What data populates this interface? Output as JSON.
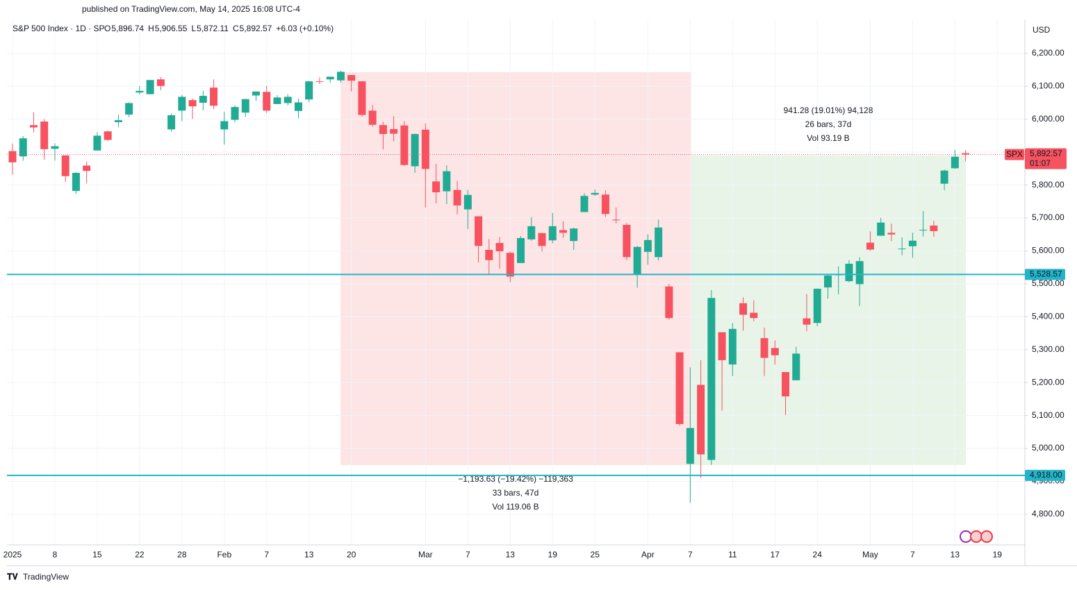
{
  "published": "published on TradingView.com, May 14, 2025 16:08 UTC-4",
  "brand": "TradingView",
  "chart_data": {
    "type": "candlestick",
    "title": "S&P 500 Index · 1D · SP",
    "ohlc": [
      {
        "key": "O",
        "value": "5,896.74"
      },
      {
        "key": "H",
        "value": "5,906.55"
      },
      {
        "key": "L",
        "value": "5,872.11"
      },
      {
        "key": "C",
        "value": "5,892.57"
      }
    ],
    "change": "+6.03 (+0.10%)",
    "currency": "USD",
    "up_color": "#22ab94",
    "down_color": "#f7525f",
    "grid": true,
    "categories": [
      "2025",
      null,
      null,
      null,
      "8",
      null,
      null,
      null,
      "15",
      null,
      null,
      null,
      "22",
      null,
      null,
      null,
      "28",
      null,
      null,
      null,
      "Feb",
      null,
      null,
      null,
      "7",
      null,
      null,
      null,
      "13",
      null,
      null,
      null,
      "20",
      null,
      null,
      null,
      null,
      null,
      null,
      "Mar",
      null,
      null,
      null,
      "7",
      null,
      null,
      null,
      "13",
      null,
      null,
      null,
      "19",
      null,
      null,
      null,
      "25",
      null,
      null,
      null,
      null,
      "Apr",
      null,
      null,
      null,
      "7",
      null,
      null,
      null,
      "11",
      null,
      null,
      null,
      "17",
      null,
      null,
      null,
      "24",
      null,
      null,
      null,
      null,
      "May",
      null,
      null,
      null,
      "7",
      null,
      null,
      null,
      "13",
      null,
      null,
      null,
      "19"
    ],
    "open": [
      5903,
      5887,
      5982,
      5993,
      5910,
      5890,
      5782,
      5859,
      5905,
      5963,
      5991,
      6014,
      6081,
      6076,
      6121,
      5969,
      6026,
      6058,
      6050,
      6096,
      5969,
      5998,
      6020,
      6072,
      6083,
      6046,
      6049,
      6025,
      6060,
      6115,
      6121,
      6118,
      6134,
      6115,
      6026,
      5982,
      5970,
      5981,
      5857,
      5968,
      5811,
      5781,
      5785,
      5726,
      5705,
      5603,
      5624,
      5594,
      5563,
      5635,
      5654,
      5632,
      5663,
      5630,
      5718,
      5771,
      5771,
      5695,
      5679,
      5527,
      5597,
      5581,
      5492,
      5292,
      4953,
      5193,
      4965,
      5353,
      5255,
      5441,
      5412,
      5335,
      5305,
      5232,
      5207,
      5395,
      5381,
      5489,
      5526,
      5508,
      5499,
      5625,
      5646,
      5655,
      5605,
      5614,
      5663,
      5677,
      5804,
      5851,
      5896.74,
      null,
      null,
      null
    ],
    "high": [
      5926,
      5949,
      6021,
      6000,
      5927,
      5890,
      5839,
      5871,
      5961,
      5965,
      6014,
      6051,
      6101,
      6119,
      6128,
      6018,
      6074,
      6063,
      6086,
      6121,
      6022,
      6042,
      6062,
      6085,
      6101,
      6073,
      6076,
      6063,
      6116,
      6127,
      6129,
      6147,
      6134,
      6115,
      6043,
      5992,
      6009,
      5994,
      5956,
      5987,
      5865,
      5860,
      5812,
      5785,
      5705,
      5636,
      5642,
      5598,
      5645,
      5703,
      5655,
      5715,
      5690,
      5670,
      5775,
      5786,
      5784,
      5732,
      5685,
      5615,
      5651,
      5695,
      5500,
      5292,
      5246,
      5268,
      5481,
      5353,
      5381,
      5459,
      5450,
      5367,
      5328,
      5232,
      5309,
      5469,
      5486,
      5528,
      5553,
      5572,
      5581,
      5659,
      5700,
      5683,
      5641,
      5655,
      5721,
      5691,
      5847,
      5907,
      5906.55,
      null,
      null,
      null
    ],
    "low": [
      5831,
      5874,
      5960,
      5877,
      5874,
      5809,
      5773,
      5805,
      5905,
      5934,
      5976,
      6006,
      6075,
      6075,
      6088,
      5962,
      5994,
      6001,
      6027,
      6030,
      5923,
      5990,
      6007,
      6056,
      6019,
      6046,
      6042,
      6003,
      6052,
      6107,
      6111,
      6111,
      6084,
      6008,
      5977,
      5908,
      5933,
      5858,
      5837,
      5732,
      5744,
      5742,
      5711,
      5666,
      5565,
      5528,
      5546,
      5505,
      5563,
      5631,
      5598,
      5623,
      5640,
      5603,
      5718,
      5767,
      5703,
      5683,
      5572,
      5488,
      5558,
      5571,
      5391,
      5069,
      4835,
      4910,
      4950,
      5115,
      5220,
      5358,
      5386,
      5220,
      5255,
      5101,
      5207,
      5356,
      5371,
      5455,
      5468,
      5505,
      5433,
      5600,
      5646,
      5630,
      5587,
      5579,
      5644,
      5643,
      5784,
      5849,
      5872.11,
      null,
      null,
      null
    ],
    "close": [
      5869,
      5942,
      5975,
      5909,
      5918,
      5827,
      5837,
      5843,
      5950,
      5937,
      5997,
      6049,
      6086,
      6119,
      6101,
      6012,
      6068,
      6039,
      6071,
      6041,
      5994,
      6037,
      6061,
      6084,
      6026,
      6066,
      6068,
      6051,
      6115,
      6114,
      6129,
      6144,
      6117,
      6013,
      5983,
      5955,
      5956,
      5861,
      5955,
      5849,
      5778,
      5842,
      5738,
      5770,
      5615,
      5572,
      5599,
      5522,
      5639,
      5675,
      5615,
      5675,
      5655,
      5668,
      5767,
      5776,
      5712,
      5693,
      5581,
      5612,
      5633,
      5671,
      5396,
      5074,
      5062,
      4982,
      5457,
      5268,
      5363,
      5406,
      5396,
      5275,
      5283,
      5158,
      5288,
      5376,
      5485,
      5525,
      5529,
      5561,
      5569,
      5604,
      5686,
      5650,
      5607,
      5631,
      5664,
      5660,
      5844,
      5886,
      5892.57,
      null,
      null,
      null
    ],
    "ylim": [
      4707,
      6303
    ],
    "yticks": [
      {
        "value": 4800,
        "label": "4,800.00"
      },
      {
        "value": 4900,
        "label": "4,900.00"
      },
      {
        "value": 5000,
        "label": "5,000.00"
      },
      {
        "value": 5100,
        "label": "5,100.00"
      },
      {
        "value": 5200,
        "label": "5,200.00"
      },
      {
        "value": 5300,
        "label": "5,300.00"
      },
      {
        "value": 5400,
        "label": "5,400.00"
      },
      {
        "value": 5500,
        "label": "5,500.00"
      },
      {
        "value": 5600,
        "label": "5,600.00"
      },
      {
        "value": 5700,
        "label": "5,700.00"
      },
      {
        "value": 5800,
        "label": "5,800.00"
      },
      {
        "value": 5900,
        "label": "5,900.00"
      },
      {
        "value": 6000,
        "label": "6,000.00"
      },
      {
        "value": 6100,
        "label": "6,100.00"
      },
      {
        "value": 6200,
        "label": "6,200.00"
      }
    ],
    "levels": [
      {
        "value": 5528.57,
        "label": "5,528.57"
      },
      {
        "value": 4918.0,
        "label": "4,918.00"
      }
    ],
    "level_color": "#22b5c9",
    "last_price": {
      "symbol": "SPX",
      "label": "5,892.57",
      "countdown": "01:07"
    },
    "measures": [
      {
        "lines": [
          "−1,193.63 (−19.42%) −119,363",
          "33 bars, 47d",
          "Vol 119.06 B"
        ]
      },
      {
        "lines": [
          "941.28 (19.01%) 94,128",
          "26 bars, 37d",
          "Vol 93.19 B"
        ]
      }
    ]
  }
}
